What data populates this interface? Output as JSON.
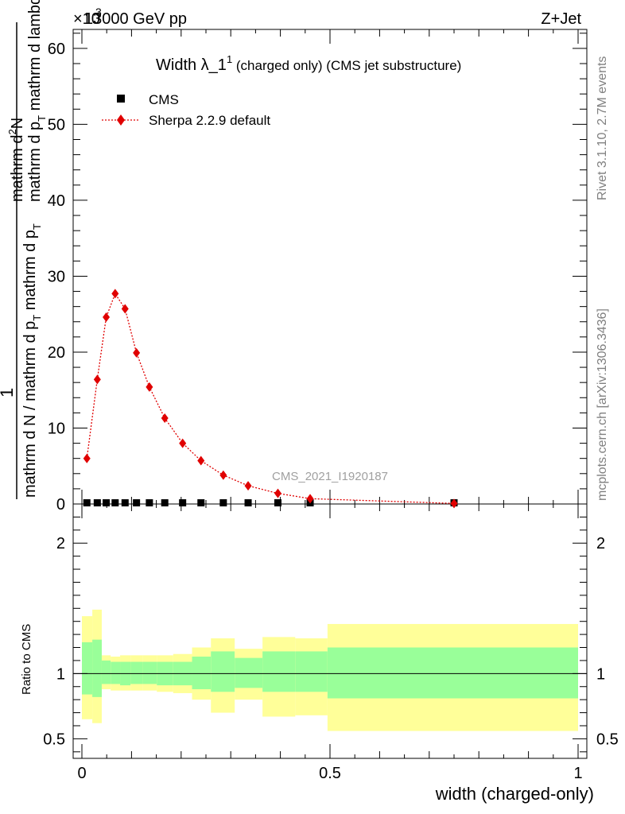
{
  "header": {
    "left": "13000 GeV pp",
    "right": "Z+Jet",
    "exponent": "×10",
    "exponent_power": "3"
  },
  "side_labels": {
    "rivet": "Rivet 3.1.10,  2.7M events",
    "mcplots": "mcplots.cern.ch [arXiv:1306.3436]"
  },
  "chart_data": {
    "type": "scatter",
    "title": {
      "main": "Width λ_1",
      "sup": "1",
      "rest": " (charged only) (CMS jet substructure)"
    },
    "ylabel": {
      "numerator_top": "mathrm d",
      "numerator_sup": "2",
      "numerator_N": "N",
      "numerator_bottom": "mathrm d p",
      "numerator_bottom_sub": "T",
      "numerator_bottom_rest": " mathrm d lambda",
      "frac_one": "1",
      "denominator": "mathrm d N / mathrm d p",
      "denominator_sub": "T",
      "denominator_rest": " mathrm d p",
      "denominator_sub2": "T"
    },
    "xlabel": "width (charged-only)",
    "ratio_ylabel": "Ratio to CMS",
    "analysis_label": "CMS_2021_I1920187",
    "xlim": [
      0,
      1
    ],
    "ylim": [
      0,
      62.5
    ],
    "ratio_ylim": [
      0.35,
      2.3
    ],
    "x_ticks": [
      {
        "v": 0,
        "label": "0"
      },
      {
        "v": 0.5,
        "label": "0.5"
      },
      {
        "v": 1,
        "label": "1"
      }
    ],
    "y_ticks": [
      {
        "v": 0,
        "label": "0"
      },
      {
        "v": 10,
        "label": "10"
      },
      {
        "v": 20,
        "label": "20"
      },
      {
        "v": 30,
        "label": "30"
      },
      {
        "v": 40,
        "label": "40"
      },
      {
        "v": 50,
        "label": "50"
      },
      {
        "v": 60,
        "label": "60"
      }
    ],
    "ratio_ticks": [
      {
        "v": 0.5,
        "label": "0.5"
      },
      {
        "v": 1,
        "label": "1"
      },
      {
        "v": 2,
        "label": "2"
      }
    ],
    "legend": [
      {
        "name": "CMS"
      },
      {
        "name": "Sherpa 2.2.9 default"
      }
    ],
    "cms_points": [
      {
        "x": 0.01,
        "y": 0.1
      },
      {
        "x": 0.031,
        "y": 0.1
      },
      {
        "x": 0.049,
        "y": 0.1
      },
      {
        "x": 0.067,
        "y": 0.1
      },
      {
        "x": 0.087,
        "y": 0.1
      },
      {
        "x": 0.11,
        "y": 0.1
      },
      {
        "x": 0.136,
        "y": 0.1
      },
      {
        "x": 0.167,
        "y": 0.1
      },
      {
        "x": 0.203,
        "y": 0.1
      },
      {
        "x": 0.24,
        "y": 0.1
      },
      {
        "x": 0.285,
        "y": 0.1
      },
      {
        "x": 0.335,
        "y": 0.1
      },
      {
        "x": 0.395,
        "y": 0.1
      },
      {
        "x": 0.46,
        "y": 0.1
      },
      {
        "x": 0.75,
        "y": 0.1
      }
    ],
    "sherpa_points": [
      {
        "x": 0.01,
        "y": 6.0
      },
      {
        "x": 0.031,
        "y": 16.4
      },
      {
        "x": 0.049,
        "y": 24.6
      },
      {
        "x": 0.067,
        "y": 27.7
      },
      {
        "x": 0.087,
        "y": 25.7
      },
      {
        "x": 0.11,
        "y": 19.9
      },
      {
        "x": 0.136,
        "y": 15.4
      },
      {
        "x": 0.167,
        "y": 11.3
      },
      {
        "x": 0.203,
        "y": 8.0
      },
      {
        "x": 0.24,
        "y": 5.7
      },
      {
        "x": 0.285,
        "y": 3.8
      },
      {
        "x": 0.335,
        "y": 2.4
      },
      {
        "x": 0.395,
        "y": 1.4
      },
      {
        "x": 0.46,
        "y": 0.7
      },
      {
        "x": 0.75,
        "y": 0.07
      }
    ],
    "ratio_bands": [
      {
        "x0": 0.0,
        "x1": 0.021,
        "g0": 0.84,
        "g1": 1.24,
        "y0": 0.65,
        "y1": 1.44
      },
      {
        "x0": 0.021,
        "x1": 0.04,
        "g0": 0.82,
        "g1": 1.26,
        "y0": 0.62,
        "y1": 1.49
      },
      {
        "x0": 0.04,
        "x1": 0.058,
        "g0": 0.92,
        "g1": 1.1,
        "y0": 0.88,
        "y1": 1.14
      },
      {
        "x0": 0.058,
        "x1": 0.077,
        "g0": 0.92,
        "g1": 1.09,
        "y0": 0.87,
        "y1": 1.13
      },
      {
        "x0": 0.077,
        "x1": 0.098,
        "g0": 0.91,
        "g1": 1.09,
        "y0": 0.87,
        "y1": 1.14
      },
      {
        "x0": 0.098,
        "x1": 0.122,
        "g0": 0.92,
        "g1": 1.09,
        "y0": 0.87,
        "y1": 1.14
      },
      {
        "x0": 0.122,
        "x1": 0.151,
        "g0": 0.92,
        "g1": 1.09,
        "y0": 0.87,
        "y1": 1.14
      },
      {
        "x0": 0.151,
        "x1": 0.184,
        "g0": 0.91,
        "g1": 1.09,
        "y0": 0.86,
        "y1": 1.14
      },
      {
        "x0": 0.184,
        "x1": 0.222,
        "g0": 0.91,
        "g1": 1.09,
        "y0": 0.85,
        "y1": 1.15
      },
      {
        "x0": 0.222,
        "x1": 0.26,
        "g0": 0.88,
        "g1": 1.13,
        "y0": 0.8,
        "y1": 1.2
      },
      {
        "x0": 0.26,
        "x1": 0.308,
        "g0": 0.86,
        "g1": 1.17,
        "y0": 0.7,
        "y1": 1.27
      },
      {
        "x0": 0.308,
        "x1": 0.364,
        "g0": 0.89,
        "g1": 1.12,
        "y0": 0.8,
        "y1": 1.19
      },
      {
        "x0": 0.364,
        "x1": 0.43,
        "g0": 0.86,
        "g1": 1.17,
        "y0": 0.67,
        "y1": 1.28
      },
      {
        "x0": 0.43,
        "x1": 0.495,
        "g0": 0.86,
        "g1": 1.17,
        "y0": 0.68,
        "y1": 1.27
      },
      {
        "x0": 0.495,
        "x1": 1.0,
        "g0": 0.81,
        "g1": 1.2,
        "y0": 0.56,
        "y1": 1.38
      }
    ],
    "colors": {
      "sherpa": "#e00000",
      "cms": "#000000",
      "band_inner": "#99ff99",
      "band_outer": "#ffff99",
      "side_text": "#808080"
    }
  }
}
